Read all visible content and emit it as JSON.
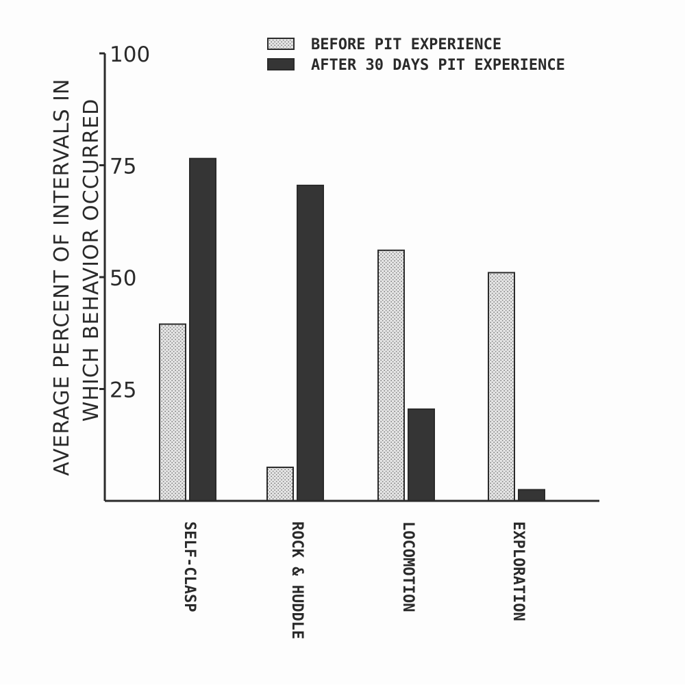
{
  "chart_data": {
    "type": "bar",
    "title": "",
    "xlabel": "",
    "ylabel_lines": [
      "AVERAGE PERCENT OF INTERVALS IN",
      "WHICH BEHAVIOR OCCURRED"
    ],
    "ylim": [
      0,
      100
    ],
    "yticks": [
      "25",
      "50",
      "75",
      "100"
    ],
    "yticks_values": [
      25,
      50,
      75,
      100
    ],
    "grid": false,
    "legend_position": "top-right",
    "categories": [
      "SELF-CLASP",
      "ROCK & HUDDLE",
      "LOCOMOTION",
      "EXPLORATION"
    ],
    "series": [
      {
        "name": "BEFORE PIT EXPERIENCE",
        "color": "#d9d9d9",
        "pattern": "stipple",
        "values": [
          39.5,
          7.5,
          56,
          51
        ]
      },
      {
        "name": "AFTER 30 DAYS PIT EXPERIENCE",
        "color": "#353535",
        "pattern": "solid",
        "values": [
          76.5,
          70.5,
          20.5,
          2.5
        ]
      }
    ]
  }
}
